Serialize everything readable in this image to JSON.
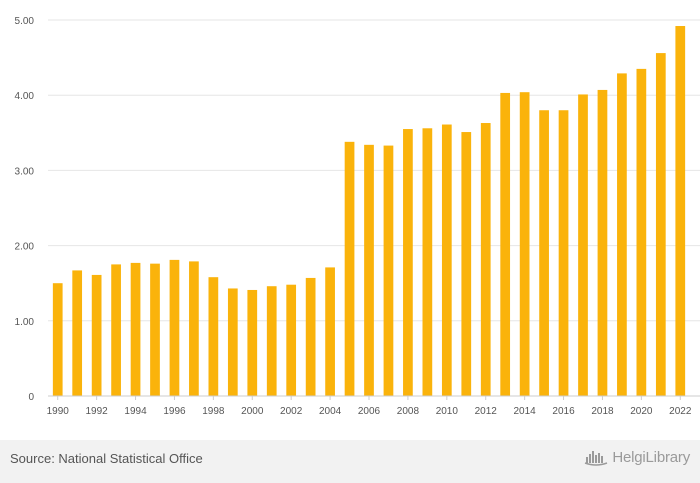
{
  "chart_data": {
    "type": "bar",
    "title": "",
    "xlabel": "",
    "ylabel": "",
    "categories": [
      "1990",
      "1991",
      "1992",
      "1993",
      "1994",
      "1995",
      "1996",
      "1997",
      "1998",
      "1999",
      "2000",
      "2001",
      "2002",
      "2003",
      "2004",
      "2005",
      "2006",
      "2007",
      "2008",
      "2009",
      "2010",
      "2011",
      "2012",
      "2013",
      "2014",
      "2015",
      "2016",
      "2017",
      "2018",
      "2019",
      "2020",
      "2021",
      "2022"
    ],
    "x_tick_labels": [
      "1990",
      "1992",
      "1994",
      "1996",
      "1998",
      "2000",
      "2002",
      "2004",
      "2006",
      "2008",
      "2010",
      "2012",
      "2014",
      "2016",
      "2018",
      "2020",
      "2022"
    ],
    "values": [
      1.5,
      1.67,
      1.61,
      1.75,
      1.77,
      1.76,
      1.81,
      1.79,
      1.58,
      1.43,
      1.41,
      1.46,
      1.48,
      1.57,
      1.71,
      3.38,
      3.34,
      3.33,
      3.55,
      3.56,
      3.61,
      3.51,
      3.63,
      4.03,
      4.04,
      3.8,
      3.8,
      4.01,
      4.07,
      4.29,
      4.35,
      4.56,
      4.92
    ],
    "ylim": [
      0,
      5
    ],
    "y_tick_labels": [
      "0",
      "1.00",
      "2.00",
      "3.00",
      "4.00",
      "5.00"
    ],
    "y_ticks": [
      0,
      1,
      2,
      3,
      4,
      5
    ],
    "grid": true,
    "bar_color": "#FAB30B",
    "grid_color": "#e6e6e6",
    "axis_color": "#cccccc",
    "label_color": "#555555"
  },
  "footer": {
    "source": "Source: National Statistical Office",
    "brand": "HelgiLibrary",
    "brand_icon": "helgi-logo-icon",
    "brand_color": "#9a9a9a"
  }
}
